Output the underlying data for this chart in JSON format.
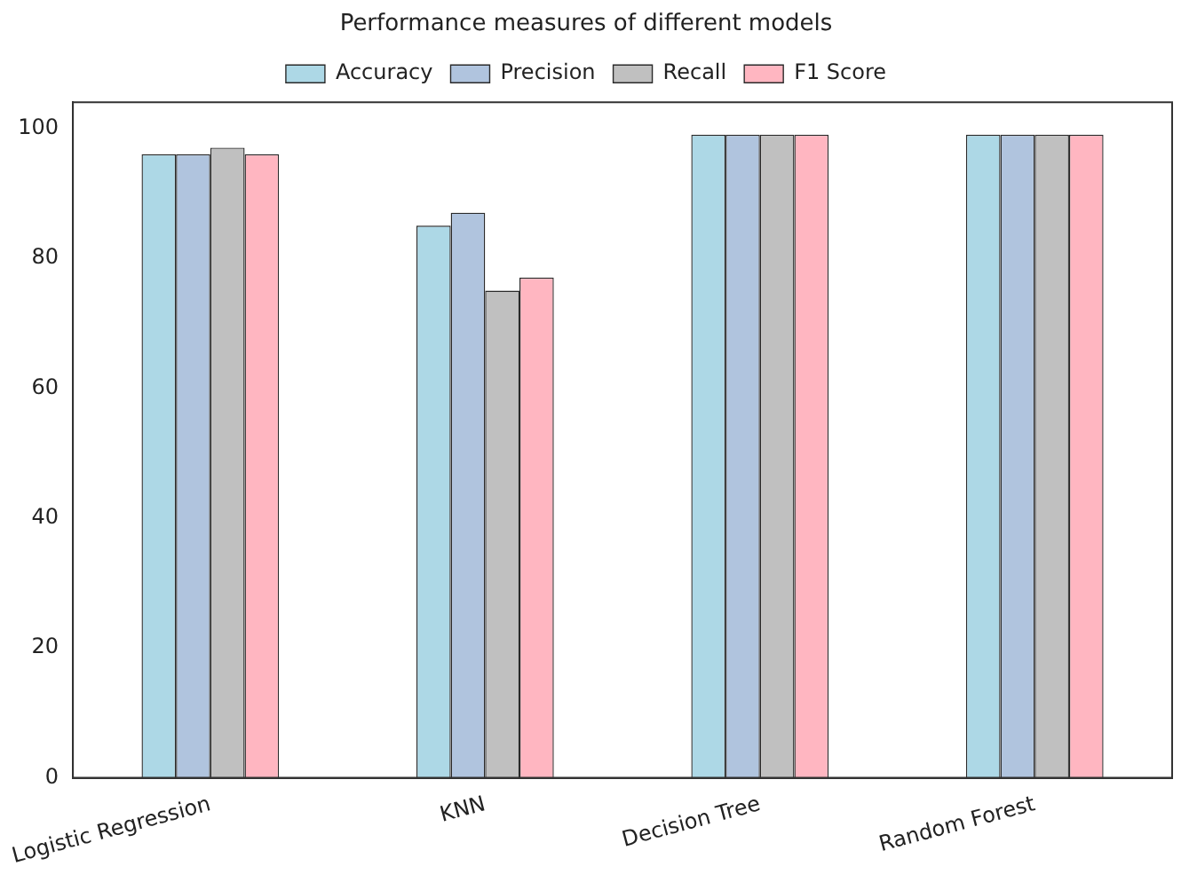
{
  "chart_data": {
    "type": "bar",
    "title": "Performance measures of different models",
    "categories": [
      "Logistic Regression",
      "KNN",
      "Decision Tree",
      "Random Forest"
    ],
    "series": [
      {
        "name": "Accuracy",
        "color": "#add8e6",
        "values": [
          96,
          85,
          99,
          99
        ]
      },
      {
        "name": "Precision",
        "color": "#b0c4de",
        "values": [
          96,
          87,
          99,
          99
        ]
      },
      {
        "name": "Recall",
        "color": "#c0c0c0",
        "values": [
          97,
          75,
          99,
          99
        ]
      },
      {
        "name": "F1 Score",
        "color": "#ffb6c1",
        "values": [
          96,
          77,
          99,
          99
        ]
      }
    ],
    "ylim": [
      0,
      104
    ],
    "yticks": [
      0,
      20,
      40,
      60,
      80,
      100
    ],
    "grid": false,
    "legend": "top"
  }
}
